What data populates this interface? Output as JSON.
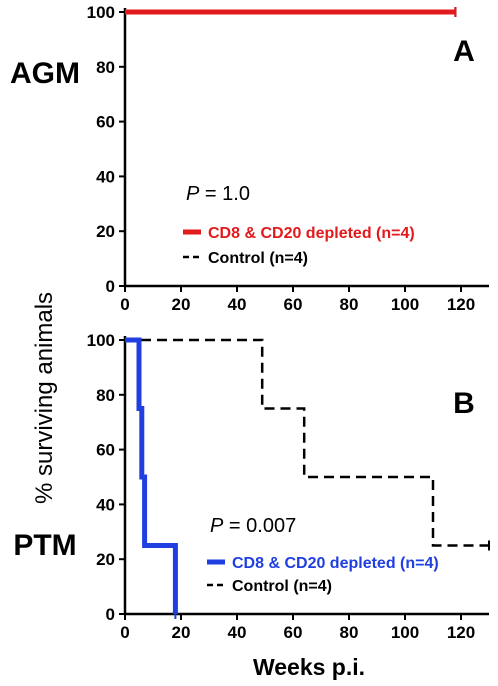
{
  "figure": {
    "ylabel": "% surviving animals",
    "xlabel": "Weeks p.i."
  },
  "chart_data": [
    {
      "type": "line",
      "step": true,
      "panel_letter": "A",
      "row_label": "AGM",
      "annotation": {
        "italic": "P",
        "rest": " = 1.0"
      },
      "xlim": [
        0,
        130
      ],
      "ylim": [
        0,
        100
      ],
      "xticks": [
        0,
        20,
        40,
        60,
        80,
        100,
        120
      ],
      "yticks": [
        0,
        20,
        40,
        60,
        80,
        100
      ],
      "legend_position": "lower-center",
      "series": [
        {
          "name": "CD8 & CD20 depleted (n=4)",
          "color": "#e31a1c",
          "style": "solid",
          "x": [
            0,
            118
          ],
          "y": [
            100,
            100
          ]
        },
        {
          "name": "Control (n=4)",
          "color": "#000000",
          "style": "dashed",
          "x": [
            0,
            118
          ],
          "y": [
            100,
            100
          ]
        }
      ]
    },
    {
      "type": "line",
      "step": true,
      "panel_letter": "B",
      "row_label": "PTM",
      "annotation": {
        "italic": "P",
        "rest": " = 0.007"
      },
      "xlim": [
        0,
        130
      ],
      "ylim": [
        0,
        100
      ],
      "xticks": [
        0,
        20,
        40,
        60,
        80,
        100,
        120
      ],
      "yticks": [
        0,
        20,
        40,
        60,
        80,
        100
      ],
      "legend_position": "lower-right",
      "series": [
        {
          "name": "CD8 & CD20 depleted (n=4)",
          "color": "#1f3fe0",
          "style": "solid",
          "x": [
            0,
            5,
            6,
            7,
            18
          ],
          "y": [
            100,
            75,
            50,
            25,
            0
          ]
        },
        {
          "name": "Control (n=4)",
          "color": "#000000",
          "style": "dashed",
          "x": [
            0,
            49,
            64,
            110,
            130
          ],
          "y": [
            100,
            75,
            50,
            25,
            25
          ]
        }
      ]
    }
  ]
}
